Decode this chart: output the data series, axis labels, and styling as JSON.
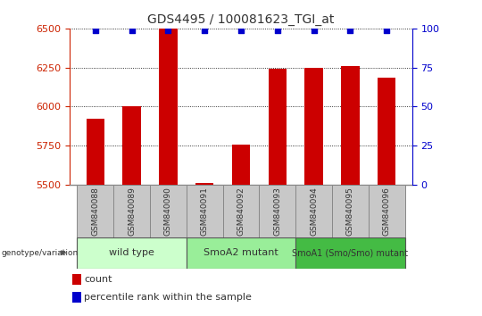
{
  "title": "GDS4495 / 100081623_TGI_at",
  "samples": [
    "GSM840088",
    "GSM840089",
    "GSM840090",
    "GSM840091",
    "GSM840092",
    "GSM840093",
    "GSM840094",
    "GSM840095",
    "GSM840096"
  ],
  "counts": [
    5920,
    6000,
    6500,
    5510,
    5760,
    6245,
    6248,
    6260,
    6185
  ],
  "percentiles": [
    99,
    99,
    99,
    99,
    99,
    99,
    99,
    99,
    99
  ],
  "ylim_left": [
    5500,
    6500
  ],
  "ylim_right": [
    0,
    100
  ],
  "yticks_left": [
    5500,
    5750,
    6000,
    6250,
    6500
  ],
  "yticks_right": [
    0,
    25,
    50,
    75,
    100
  ],
  "groups": [
    {
      "label": "wild type",
      "start": 0,
      "end": 3,
      "color": "#ccffcc"
    },
    {
      "label": "SmoA2 mutant",
      "start": 3,
      "end": 6,
      "color": "#99ee99"
    },
    {
      "label": "SmoA1 (Smo/Smo) mutant",
      "start": 6,
      "end": 9,
      "color": "#44bb44"
    }
  ],
  "bar_color": "#cc0000",
  "dot_color": "#0000cc",
  "bar_width": 0.5,
  "legend_count_color": "#cc0000",
  "legend_dot_color": "#0000cc",
  "left_axis_color": "#cc2200",
  "right_axis_color": "#0000cc",
  "grid_color": "#000000",
  "sample_box_color": "#c8c8c8",
  "sample_box_edge": "#888888"
}
